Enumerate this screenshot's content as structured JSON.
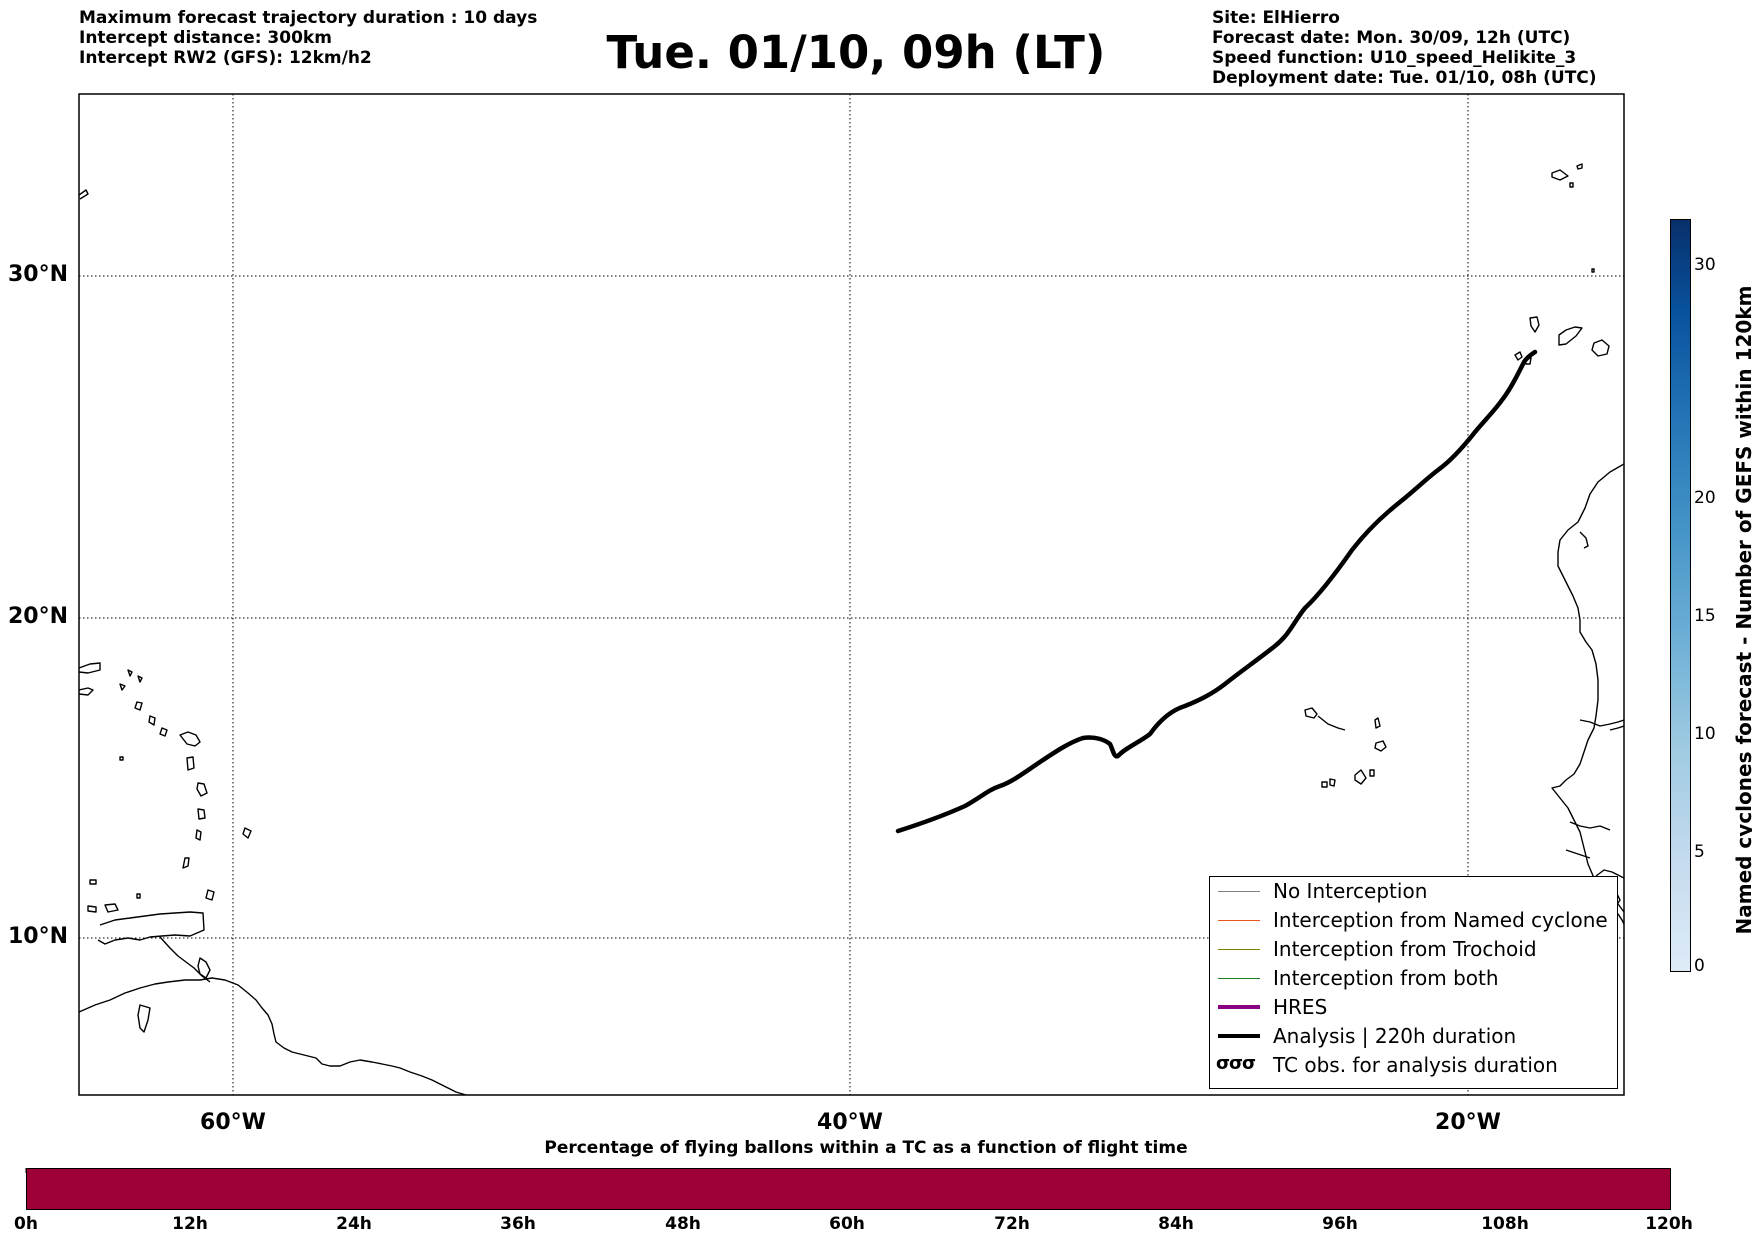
{
  "header": {
    "info_left": [
      "Maximum forecast trajectory duration : 10 days",
      "Intercept distance: 300km",
      "Intercept RW2 (GFS):  12km/h2"
    ],
    "title": "Tue. 01/10, 09h (LT)",
    "info_right": [
      "Site: ElHierro",
      "Forecast date: Mon. 30/09, 12h (UTC)",
      "Speed function: U10_speed_Helikite_3",
      "Deployment date: Tue. 01/10, 08h (UTC)"
    ]
  },
  "map": {
    "latitude_labels": [
      "30°N",
      "20°N",
      "10°N"
    ],
    "longitude_labels": [
      "60°W",
      "40°W",
      "20°W"
    ],
    "grid": "dotted",
    "trajectory_color": "#000000"
  },
  "legend": {
    "items": [
      {
        "label": "No Interception",
        "color": "#808080"
      },
      {
        "label": "Interception from Named cyclone",
        "color": "#e8541c"
      },
      {
        "label": "Interception from Trochoid",
        "color": "#808000"
      },
      {
        "label": "Interception from both",
        "color": "#1e7d1e"
      },
      {
        "label": "HRES",
        "color": "#8b0080"
      },
      {
        "label": "Analysis | 220h duration",
        "color": "#000000"
      },
      {
        "label": "TC obs. for analysis duration",
        "symbol": "σσσ"
      }
    ]
  },
  "time_colorbar": {
    "title": "Percentage of flying ballons within a TC as a function of flight time",
    "ticks": [
      "0h",
      "12h",
      "24h",
      "36h",
      "48h",
      "60h",
      "72h",
      "84h",
      "96h",
      "108h",
      "120h"
    ],
    "fill_color": "#9e0038"
  },
  "cyclone_colorbar": {
    "label": "Named cyclones forecast - Number of GEFS within 120km",
    "ticks": [
      "0",
      "5",
      "10",
      "15",
      "20",
      "30"
    ]
  }
}
